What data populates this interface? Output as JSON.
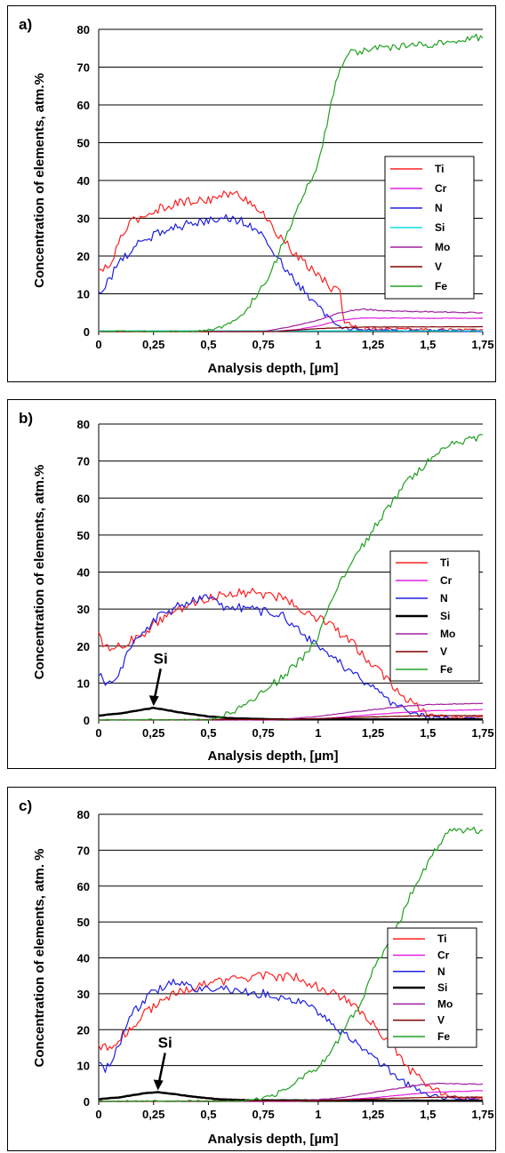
{
  "chart_data": [
    {
      "type": "line",
      "panel_label": "a)",
      "xlabel": "Analysis depth, [µm]",
      "ylabel": "Concentration of elements, atm.%",
      "xlim": [
        0,
        1.75
      ],
      "ylim": [
        0,
        80
      ],
      "x_ticks": [
        "0",
        "0,25",
        "0,5",
        "0,75",
        "1",
        "1,25",
        "1,5",
        "1,75"
      ],
      "y_ticks": [
        "0",
        "10",
        "20",
        "30",
        "40",
        "50",
        "60",
        "70",
        "80"
      ],
      "grid": "horizontal",
      "legend_position": "right",
      "annotation": "",
      "series": [
        {
          "name": "Ti",
          "color": "#ff2020",
          "noise": 1.2,
          "points": [
            [
              0,
              16
            ],
            [
              0.05,
              17
            ],
            [
              0.1,
              25
            ],
            [
              0.15,
              29
            ],
            [
              0.25,
              32
            ],
            [
              0.35,
              34
            ],
            [
              0.5,
              35
            ],
            [
              0.6,
              36.5
            ],
            [
              0.65,
              36
            ],
            [
              0.72,
              33
            ],
            [
              0.8,
              27
            ],
            [
              0.9,
              20
            ],
            [
              1.0,
              15
            ],
            [
              1.05,
              12
            ],
            [
              1.1,
              10
            ],
            [
              1.12,
              3
            ],
            [
              1.18,
              0.8
            ],
            [
              1.75,
              0.4
            ]
          ]
        },
        {
          "name": "Cr",
          "color": "#e020e0",
          "noise": 0.1,
          "points": [
            [
              0,
              0
            ],
            [
              0.8,
              0.1
            ],
            [
              0.9,
              0.5
            ],
            [
              1.0,
              1.5
            ],
            [
              1.1,
              3
            ],
            [
              1.2,
              3.6
            ],
            [
              1.75,
              3.5
            ]
          ]
        },
        {
          "name": "N",
          "color": "#2020e0",
          "noise": 1.2,
          "points": [
            [
              0,
              10
            ],
            [
              0.05,
              14
            ],
            [
              0.1,
              19
            ],
            [
              0.2,
              24
            ],
            [
              0.3,
              27
            ],
            [
              0.45,
              29
            ],
            [
              0.55,
              30
            ],
            [
              0.65,
              29.5
            ],
            [
              0.72,
              27
            ],
            [
              0.8,
              21
            ],
            [
              0.9,
              13
            ],
            [
              1.0,
              6
            ],
            [
              1.1,
              1.2
            ],
            [
              1.2,
              0.4
            ],
            [
              1.75,
              0.2
            ]
          ]
        },
        {
          "name": "Si",
          "color": "#10e0e0",
          "noise": 0.05,
          "points": [
            [
              0,
              0.2
            ],
            [
              1.75,
              0.2
            ]
          ]
        },
        {
          "name": "Mo",
          "color": "#a020a0",
          "noise": 0.15,
          "points": [
            [
              0,
              0
            ],
            [
              0.75,
              0
            ],
            [
              0.85,
              1
            ],
            [
              1.0,
              3
            ],
            [
              1.1,
              5
            ],
            [
              1.2,
              6
            ],
            [
              1.3,
              5.5
            ],
            [
              1.75,
              5
            ]
          ]
        },
        {
          "name": "V",
          "color": "#800000",
          "noise": 0.08,
          "points": [
            [
              0,
              0
            ],
            [
              0.8,
              0
            ],
            [
              1.0,
              0.8
            ],
            [
              1.2,
              1.2
            ],
            [
              1.75,
              1.3
            ]
          ]
        },
        {
          "name": "Fe",
          "color": "#20a020",
          "noise": 1.0,
          "points": [
            [
              0,
              0
            ],
            [
              0.45,
              0
            ],
            [
              0.55,
              1
            ],
            [
              0.62,
              3
            ],
            [
              0.7,
              8
            ],
            [
              0.78,
              15
            ],
            [
              0.85,
              25
            ],
            [
              0.95,
              38
            ],
            [
              1.0,
              44
            ],
            [
              1.05,
              58
            ],
            [
              1.1,
              70
            ],
            [
              1.15,
              74
            ],
            [
              1.3,
              75
            ],
            [
              1.5,
              76
            ],
            [
              1.6,
              77
            ],
            [
              1.75,
              78
            ]
          ]
        }
      ]
    },
    {
      "type": "line",
      "panel_label": "b)",
      "xlabel": "Analysis depth,  [µm]",
      "ylabel": "Concentration of elements, atm.%",
      "xlim": [
        0,
        1.75
      ],
      "ylim": [
        0,
        80
      ],
      "x_ticks": [
        "0",
        "0,25",
        "0,5",
        "0,75",
        "1",
        "1,25",
        "1,5",
        "1,75"
      ],
      "y_ticks": [
        "0",
        "10",
        "20",
        "30",
        "40",
        "50",
        "60",
        "70",
        "80"
      ],
      "grid": "horizontal",
      "legend_position": "right",
      "annotation": "Si",
      "series": [
        {
          "name": "Ti",
          "color": "#ff2020",
          "noise": 1.3,
          "points": [
            [
              0,
              25
            ],
            [
              0.03,
              19
            ],
            [
              0.1,
              20
            ],
            [
              0.2,
              23
            ],
            [
              0.3,
              28
            ],
            [
              0.45,
              32
            ],
            [
              0.55,
              34
            ],
            [
              0.7,
              34.5
            ],
            [
              0.85,
              33
            ],
            [
              0.95,
              29
            ],
            [
              1.05,
              26
            ],
            [
              1.15,
              21
            ],
            [
              1.3,
              12
            ],
            [
              1.4,
              6
            ],
            [
              1.5,
              1.5
            ],
            [
              1.6,
              0.8
            ],
            [
              1.75,
              0.6
            ]
          ]
        },
        {
          "name": "Cr",
          "color": "#e020e0",
          "noise": 0.1,
          "points": [
            [
              0,
              0
            ],
            [
              1.0,
              0.3
            ],
            [
              1.25,
              1.5
            ],
            [
              1.5,
              2.5
            ],
            [
              1.75,
              2.8
            ]
          ]
        },
        {
          "name": "N",
          "color": "#2020e0",
          "noise": 1.3,
          "points": [
            [
              0,
              13
            ],
            [
              0.02,
              10
            ],
            [
              0.08,
              12
            ],
            [
              0.15,
              20
            ],
            [
              0.25,
              27
            ],
            [
              0.4,
              32
            ],
            [
              0.5,
              33
            ],
            [
              0.55,
              31
            ],
            [
              0.7,
              30
            ],
            [
              0.85,
              28
            ],
            [
              0.95,
              22
            ],
            [
              1.05,
              18
            ],
            [
              1.15,
              13
            ],
            [
              1.3,
              6
            ],
            [
              1.4,
              2.5
            ],
            [
              1.5,
              0.8
            ],
            [
              1.75,
              0.3
            ]
          ]
        },
        {
          "name": "Si",
          "color": "#000000",
          "noise": 0.1,
          "width": 2.5,
          "points": [
            [
              0,
              1.2
            ],
            [
              0.1,
              1.8
            ],
            [
              0.2,
              2.8
            ],
            [
              0.25,
              3.3
            ],
            [
              0.3,
              2.8
            ],
            [
              0.4,
              1.8
            ],
            [
              0.5,
              1.0
            ],
            [
              0.6,
              0.5
            ],
            [
              0.8,
              0.2
            ],
            [
              1.75,
              0.2
            ]
          ]
        },
        {
          "name": "Mo",
          "color": "#a020a0",
          "noise": 0.15,
          "points": [
            [
              0,
              0
            ],
            [
              0.8,
              0
            ],
            [
              1.0,
              1
            ],
            [
              1.2,
              2.5
            ],
            [
              1.4,
              3.8
            ],
            [
              1.55,
              4.3
            ],
            [
              1.75,
              4.5
            ]
          ]
        },
        {
          "name": "V",
          "color": "#800000",
          "noise": 0.08,
          "points": [
            [
              0,
              0
            ],
            [
              0.9,
              0.2
            ],
            [
              1.2,
              0.8
            ],
            [
              1.5,
              1.2
            ],
            [
              1.75,
              1.2
            ]
          ]
        },
        {
          "name": "Fe",
          "color": "#20a020",
          "noise": 1.2,
          "points": [
            [
              0,
              0
            ],
            [
              0.5,
              0
            ],
            [
              0.6,
              2
            ],
            [
              0.7,
              5
            ],
            [
              0.8,
              10
            ],
            [
              0.9,
              15
            ],
            [
              1.0,
              22
            ],
            [
              1.05,
              30
            ],
            [
              1.1,
              38
            ],
            [
              1.2,
              47
            ],
            [
              1.3,
              56
            ],
            [
              1.4,
              64
            ],
            [
              1.5,
              70
            ],
            [
              1.6,
              74
            ],
            [
              1.7,
              76
            ],
            [
              1.75,
              77
            ]
          ]
        }
      ]
    },
    {
      "type": "line",
      "panel_label": "c)",
      "xlabel": "Analysis depth, [µm]",
      "ylabel": "Concentration of elements, atm. %",
      "xlim": [
        0,
        1.75
      ],
      "ylim": [
        0,
        80
      ],
      "x_ticks": [
        "0",
        "0,25",
        "0,5",
        "0,75",
        "1",
        "1,25",
        "1,5",
        "1,75"
      ],
      "y_ticks": [
        "0",
        "10",
        "20",
        "30",
        "40",
        "50",
        "60",
        "70",
        "80"
      ],
      "grid": "horizontal",
      "legend_position": "right",
      "annotation": "Si",
      "series": [
        {
          "name": "Ti",
          "color": "#ff2020",
          "noise": 1.3,
          "points": [
            [
              0,
              16
            ],
            [
              0.05,
              14
            ],
            [
              0.1,
              18
            ],
            [
              0.2,
              24
            ],
            [
              0.3,
              29
            ],
            [
              0.45,
              32
            ],
            [
              0.6,
              34
            ],
            [
              0.75,
              35
            ],
            [
              0.9,
              34.5
            ],
            [
              1.0,
              32
            ],
            [
              1.1,
              29
            ],
            [
              1.2,
              25
            ],
            [
              1.3,
              18
            ],
            [
              1.4,
              10
            ],
            [
              1.5,
              4
            ],
            [
              1.6,
              1.5
            ],
            [
              1.75,
              0.8
            ]
          ]
        },
        {
          "name": "Cr",
          "color": "#e020e0",
          "noise": 0.1,
          "points": [
            [
              0,
              0
            ],
            [
              1.0,
              0.2
            ],
            [
              1.25,
              1
            ],
            [
              1.5,
              2.5
            ],
            [
              1.75,
              3
            ]
          ]
        },
        {
          "name": "N",
          "color": "#2020e0",
          "noise": 1.3,
          "points": [
            [
              0,
              11
            ],
            [
              0.03,
              9
            ],
            [
              0.08,
              14
            ],
            [
              0.15,
              24
            ],
            [
              0.25,
              31
            ],
            [
              0.35,
              33
            ],
            [
              0.45,
              31
            ],
            [
              0.6,
              31
            ],
            [
              0.75,
              30
            ],
            [
              0.9,
              28
            ],
            [
              1.0,
              25
            ],
            [
              1.1,
              20
            ],
            [
              1.2,
              15
            ],
            [
              1.3,
              10
            ],
            [
              1.4,
              5
            ],
            [
              1.5,
              1.5
            ],
            [
              1.75,
              0.4
            ]
          ]
        },
        {
          "name": "Si",
          "color": "#000000",
          "noise": 0.1,
          "width": 2.5,
          "points": [
            [
              0,
              0.6
            ],
            [
              0.1,
              1.2
            ],
            [
              0.2,
              2.2
            ],
            [
              0.27,
              2.6
            ],
            [
              0.35,
              2.0
            ],
            [
              0.45,
              1.2
            ],
            [
              0.55,
              0.6
            ],
            [
              0.7,
              0.3
            ],
            [
              1.75,
              0.2
            ]
          ]
        },
        {
          "name": "Mo",
          "color": "#a020a0",
          "noise": 0.15,
          "points": [
            [
              0,
              0
            ],
            [
              0.9,
              0
            ],
            [
              1.1,
              1
            ],
            [
              1.3,
              3
            ],
            [
              1.45,
              4.5
            ],
            [
              1.55,
              5
            ],
            [
              1.75,
              4.8
            ]
          ]
        },
        {
          "name": "V",
          "color": "#800000",
          "noise": 0.08,
          "points": [
            [
              0,
              0
            ],
            [
              1.0,
              0.2
            ],
            [
              1.3,
              0.8
            ],
            [
              1.55,
              1.2
            ],
            [
              1.75,
              1.2
            ]
          ]
        },
        {
          "name": "Fe",
          "color": "#20a020",
          "noise": 1.2,
          "points": [
            [
              0,
              0
            ],
            [
              0.65,
              0
            ],
            [
              0.75,
              1
            ],
            [
              0.85,
              3
            ],
            [
              0.95,
              7
            ],
            [
              1.05,
              13
            ],
            [
              1.1,
              18
            ],
            [
              1.2,
              28
            ],
            [
              1.25,
              36
            ],
            [
              1.35,
              47
            ],
            [
              1.4,
              55
            ],
            [
              1.45,
              60
            ],
            [
              1.5,
              67
            ],
            [
              1.55,
              72
            ],
            [
              1.6,
              75
            ],
            [
              1.7,
              76
            ],
            [
              1.75,
              75
            ]
          ]
        }
      ]
    }
  ]
}
